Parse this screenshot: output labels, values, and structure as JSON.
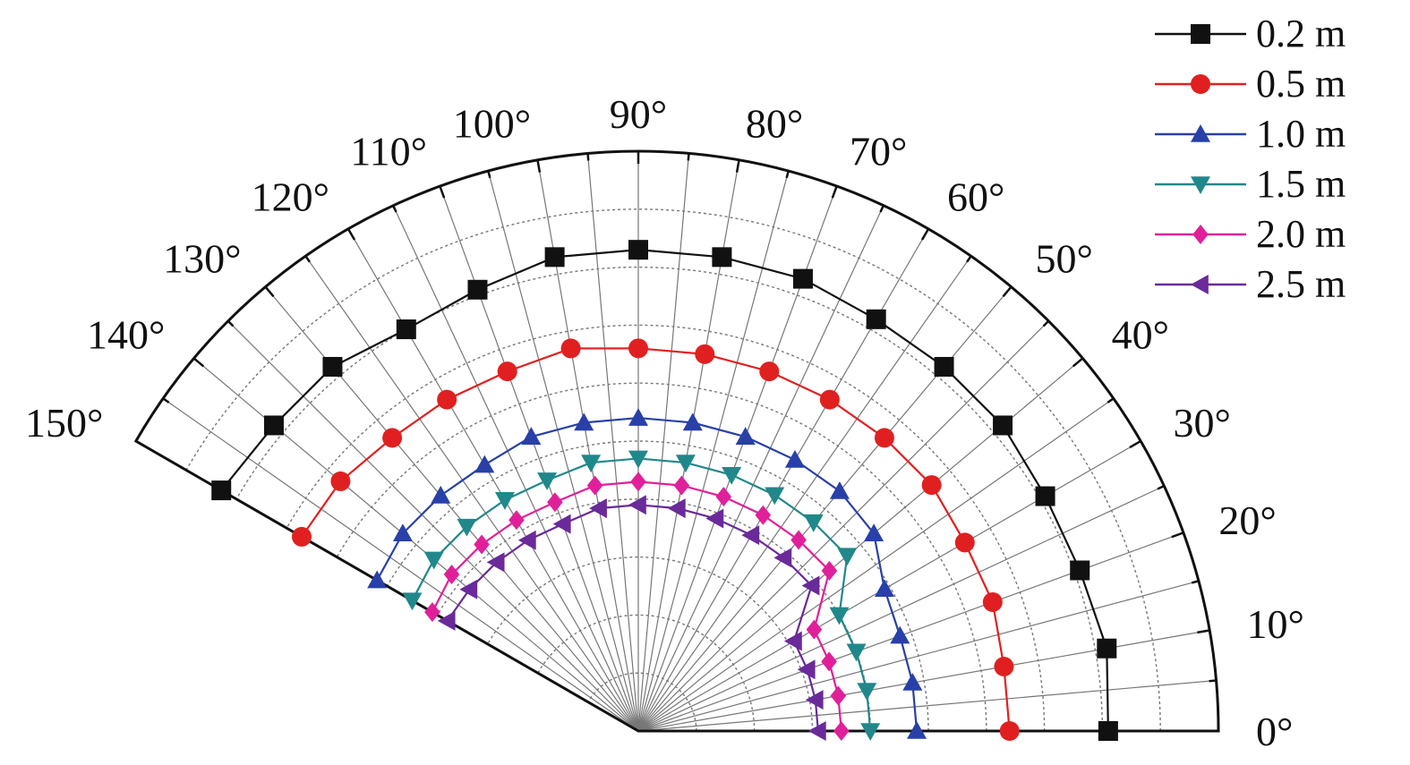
{
  "chart_data": {
    "type": "polar-line",
    "angular_unit": "degrees",
    "angle_range": [
      0,
      150
    ],
    "angle_tick_step": 10,
    "angle_tick_labels": [
      "0°",
      "10°",
      "20°",
      "30°",
      "40°",
      "50°",
      "60°",
      "70°",
      "80°",
      "90°",
      "100°",
      "110°",
      "120°",
      "130°",
      "140°",
      "150°"
    ],
    "radial_range": [
      0,
      1
    ],
    "radial_labels": "none",
    "grid": true,
    "legend_position": "top-right",
    "angles": [
      0,
      10,
      20,
      30,
      40,
      50,
      60,
      70,
      80,
      90,
      100,
      110,
      120,
      130,
      140,
      150
    ],
    "series": [
      {
        "name": "0.2 m",
        "color": "#111111",
        "marker": "square",
        "r": [
          0.81,
          0.82,
          0.81,
          0.81,
          0.82,
          0.82,
          0.82,
          0.83,
          0.83,
          0.83,
          0.83,
          0.81,
          0.8,
          0.82,
          0.82,
          0.83
        ]
      },
      {
        "name": "0.5 m",
        "color": "#e02020",
        "marker": "circle",
        "r": [
          0.64,
          0.64,
          0.65,
          0.65,
          0.66,
          0.66,
          0.66,
          0.66,
          0.66,
          0.66,
          0.67,
          0.66,
          0.66,
          0.66,
          0.67,
          0.67
        ]
      },
      {
        "name": "1.0 m",
        "color": "#2840a8",
        "marker": "triangle-up",
        "r": [
          0.48,
          0.48,
          0.48,
          0.49,
          0.53,
          0.54,
          0.54,
          0.54,
          0.54,
          0.54,
          0.54,
          0.54,
          0.53,
          0.53,
          0.53,
          0.52
        ]
      },
      {
        "name": "1.5 m",
        "color": "#20888a",
        "marker": "triangle-down",
        "r": [
          0.4,
          0.4,
          0.4,
          0.4,
          0.47,
          0.47,
          0.47,
          0.47,
          0.47,
          0.47,
          0.47,
          0.46,
          0.46,
          0.46,
          0.46,
          0.45
        ]
      },
      {
        "name": "2.0 m",
        "color": "#e0209a",
        "marker": "diamond",
        "r": [
          0.35,
          0.35,
          0.35,
          0.35,
          0.43,
          0.43,
          0.43,
          0.43,
          0.43,
          0.43,
          0.43,
          0.42,
          0.42,
          0.42,
          0.42,
          0.41
        ]
      },
      {
        "name": "2.5 m",
        "color": "#6a2a9a",
        "marker": "triangle-left",
        "r": [
          0.31,
          0.31,
          0.31,
          0.31,
          0.39,
          0.39,
          0.39,
          0.39,
          0.39,
          0.39,
          0.39,
          0.38,
          0.38,
          0.38,
          0.38,
          0.38
        ]
      }
    ]
  }
}
